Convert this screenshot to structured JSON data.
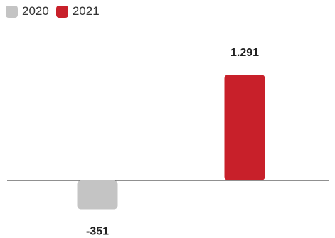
{
  "chart_data": {
    "type": "bar",
    "categories": [
      "2020",
      "2021"
    ],
    "values": [
      -351,
      1291
    ],
    "value_labels": [
      "-351",
      "1.291"
    ],
    "colors": [
      "#c4c4c4",
      "#c8202a"
    ],
    "legend": {
      "placement": "top-left",
      "entries": [
        "2020",
        "2021"
      ]
    },
    "title": "",
    "xlabel": "",
    "ylabel": "",
    "grid": false
  }
}
